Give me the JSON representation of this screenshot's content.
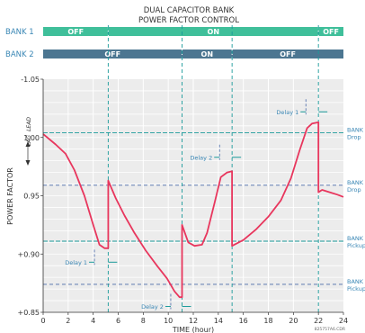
{
  "title_lines": [
    "DUAL CAPACITOR BANK",
    "POWER FACTOR CONTROL"
  ],
  "colors": {
    "bank1_bar": "#3fbf9a",
    "bank2_bar": "#4c7691",
    "curve": "#e8365d",
    "threshold": "#1a9a9a",
    "dash_blue": "#4a6aa8",
    "label": "#3a87b5",
    "plot_bg": "#ececec",
    "grid": "#ffffff"
  },
  "banks": [
    {
      "name": "BANK 1",
      "segments": [
        {
          "from": 0,
          "to": 5.2,
          "label": "OFF"
        },
        {
          "from": 5.2,
          "to": 22.0,
          "label": "ON"
        },
        {
          "from": 22.0,
          "to": 24,
          "label": "OFF"
        }
      ]
    },
    {
      "name": "BANK 2",
      "segments": [
        {
          "from": 0,
          "to": 11.1,
          "label": "OFF"
        },
        {
          "from": 11.1,
          "to": 15.1,
          "label": "ON"
        },
        {
          "from": 15.1,
          "to": 24,
          "label": "OFF"
        }
      ]
    }
  ],
  "chart_data": {
    "type": "line",
    "xlabel": "TIME (hour)",
    "ylabel": "POWER FACTOR",
    "xlim": [
      0,
      24
    ],
    "ylim": [
      0.85,
      1.05
    ],
    "x_ticks": [
      0,
      2,
      4,
      6,
      8,
      10,
      12,
      14,
      16,
      18,
      20,
      22,
      24
    ],
    "y_ticks": [
      {
        "value": 1.05,
        "label": "-1.05"
      },
      {
        "value": 1.0,
        "label": "1.00"
      },
      {
        "value": 0.95,
        "label": "0.95"
      },
      {
        "value": 0.9,
        "label": "+0.90"
      },
      {
        "value": 0.85,
        "label": "+0.85"
      }
    ],
    "grid": true,
    "axis_annotations": {
      "lead": "LEAD",
      "lag": "LAG"
    },
    "series": [
      {
        "x": [
          0,
          1,
          1.8,
          2.5,
          3.3,
          4.0,
          4.5,
          4.9,
          5.2,
          5.2,
          5.8,
          6.5,
          7.3,
          8.2,
          9.1,
          9.9,
          10.5,
          10.9,
          11.1,
          11.1,
          11.6,
          12.1,
          12.7,
          13.1,
          13.7,
          14.2,
          14.7,
          15.1,
          15.1,
          16,
          17,
          18,
          19,
          19.8,
          20.5,
          21.1,
          21.5,
          22.0,
          22.0,
          22.3,
          22.9,
          23.5,
          24
        ],
        "y": [
          1.003,
          0.994,
          0.986,
          0.972,
          0.95,
          0.925,
          0.908,
          0.905,
          0.905,
          0.963,
          0.948,
          0.933,
          0.918,
          0.903,
          0.89,
          0.879,
          0.868,
          0.863,
          0.863,
          0.925,
          0.91,
          0.907,
          0.908,
          0.918,
          0.944,
          0.966,
          0.97,
          0.971,
          0.907,
          0.912,
          0.921,
          0.932,
          0.946,
          0.965,
          0.989,
          1.008,
          1.012,
          1.013,
          0.953,
          0.955,
          0.953,
          0.951,
          0.949
        ]
      }
    ],
    "thresholds": [
      {
        "y": 1.004,
        "style": "solid",
        "labels": [
          "BANK",
          "Drop"
        ]
      },
      {
        "y": 0.959,
        "style": "dash",
        "labels": [
          "BANK",
          "Drop"
        ]
      },
      {
        "y": 0.911,
        "style": "solid",
        "labels": [
          "BANK",
          "Pickup"
        ]
      },
      {
        "y": 0.874,
        "style": "dash",
        "labels": [
          "BANK",
          "Pickup"
        ]
      }
    ],
    "transitions": [
      5.2,
      11.1,
      15.1,
      22.0
    ],
    "delays": [
      {
        "label": "Delay 1",
        "x_from": 4.1,
        "x_to": 5.2,
        "y": 0.893,
        "label_side": "left"
      },
      {
        "label": "Delay 2",
        "x_from": 10.2,
        "x_to": 11.1,
        "y": 0.855,
        "label_side": "left"
      },
      {
        "label": "Delay 2",
        "x_from": 14.1,
        "x_to": 15.1,
        "y": 0.983,
        "label_side": "left"
      },
      {
        "label": "Delay 1",
        "x_from": 21.0,
        "x_to": 22.0,
        "y": 1.022,
        "label_side": "left"
      }
    ],
    "figure_code": "825757A6.CDR"
  }
}
